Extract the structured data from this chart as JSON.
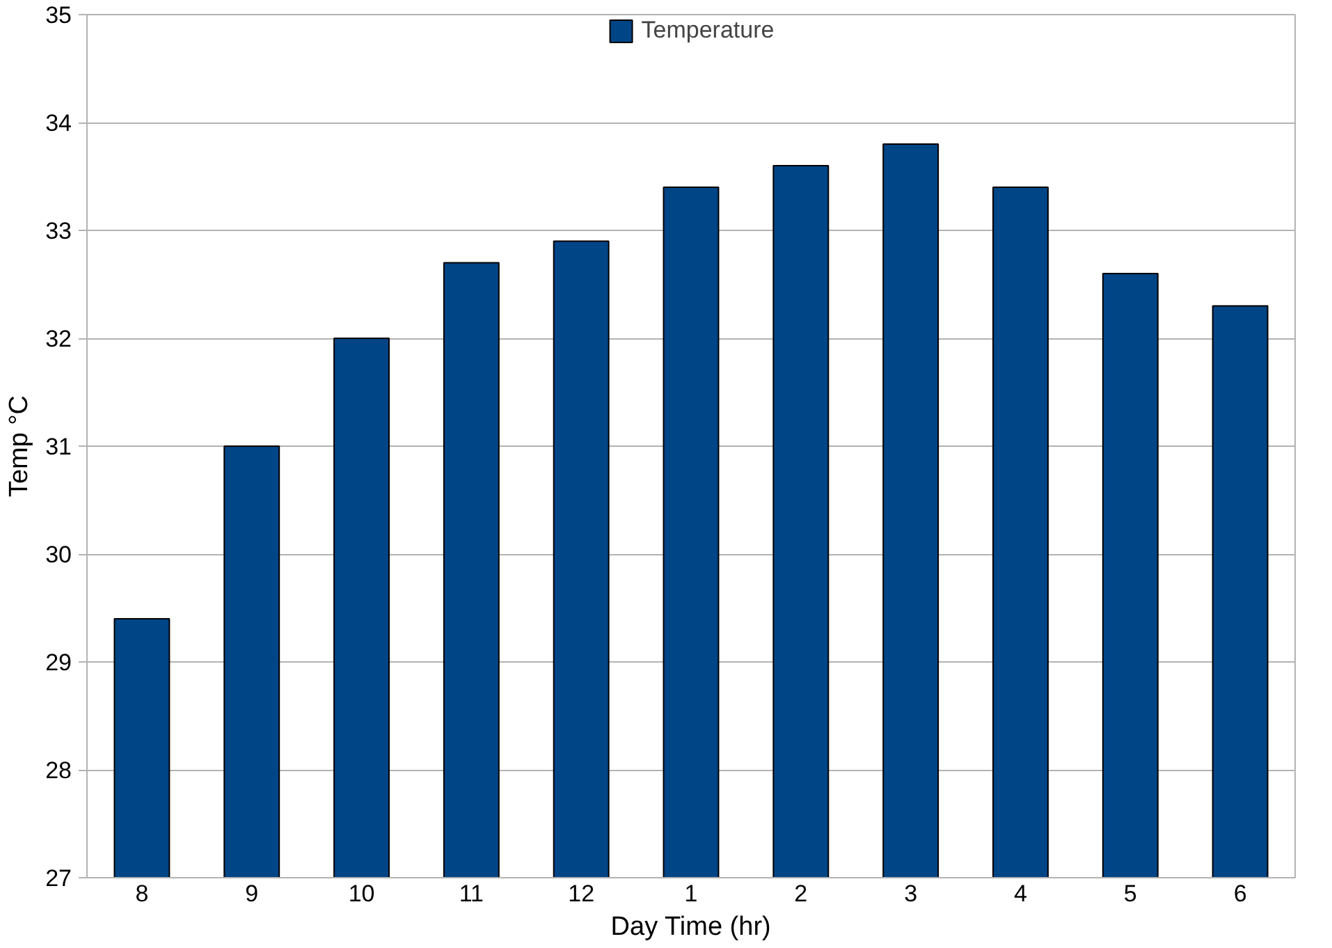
{
  "chart_data": {
    "type": "bar",
    "xlabel": "Day Time (hr)",
    "ylabel": "Temp °C",
    "categories": [
      "8",
      "9",
      "10",
      "11",
      "12",
      "1",
      "2",
      "3",
      "4",
      "5",
      "6"
    ],
    "series": [
      {
        "name": "Temperature",
        "color": "#004586",
        "values": [
          29.4,
          31.0,
          32.0,
          32.7,
          32.9,
          33.4,
          33.6,
          33.8,
          33.4,
          32.6,
          32.3
        ]
      }
    ],
    "ylim": [
      27,
      35
    ],
    "yticks": [
      27,
      28,
      29,
      30,
      31,
      32,
      33,
      34,
      35
    ],
    "grid": "y",
    "legend": "top"
  }
}
